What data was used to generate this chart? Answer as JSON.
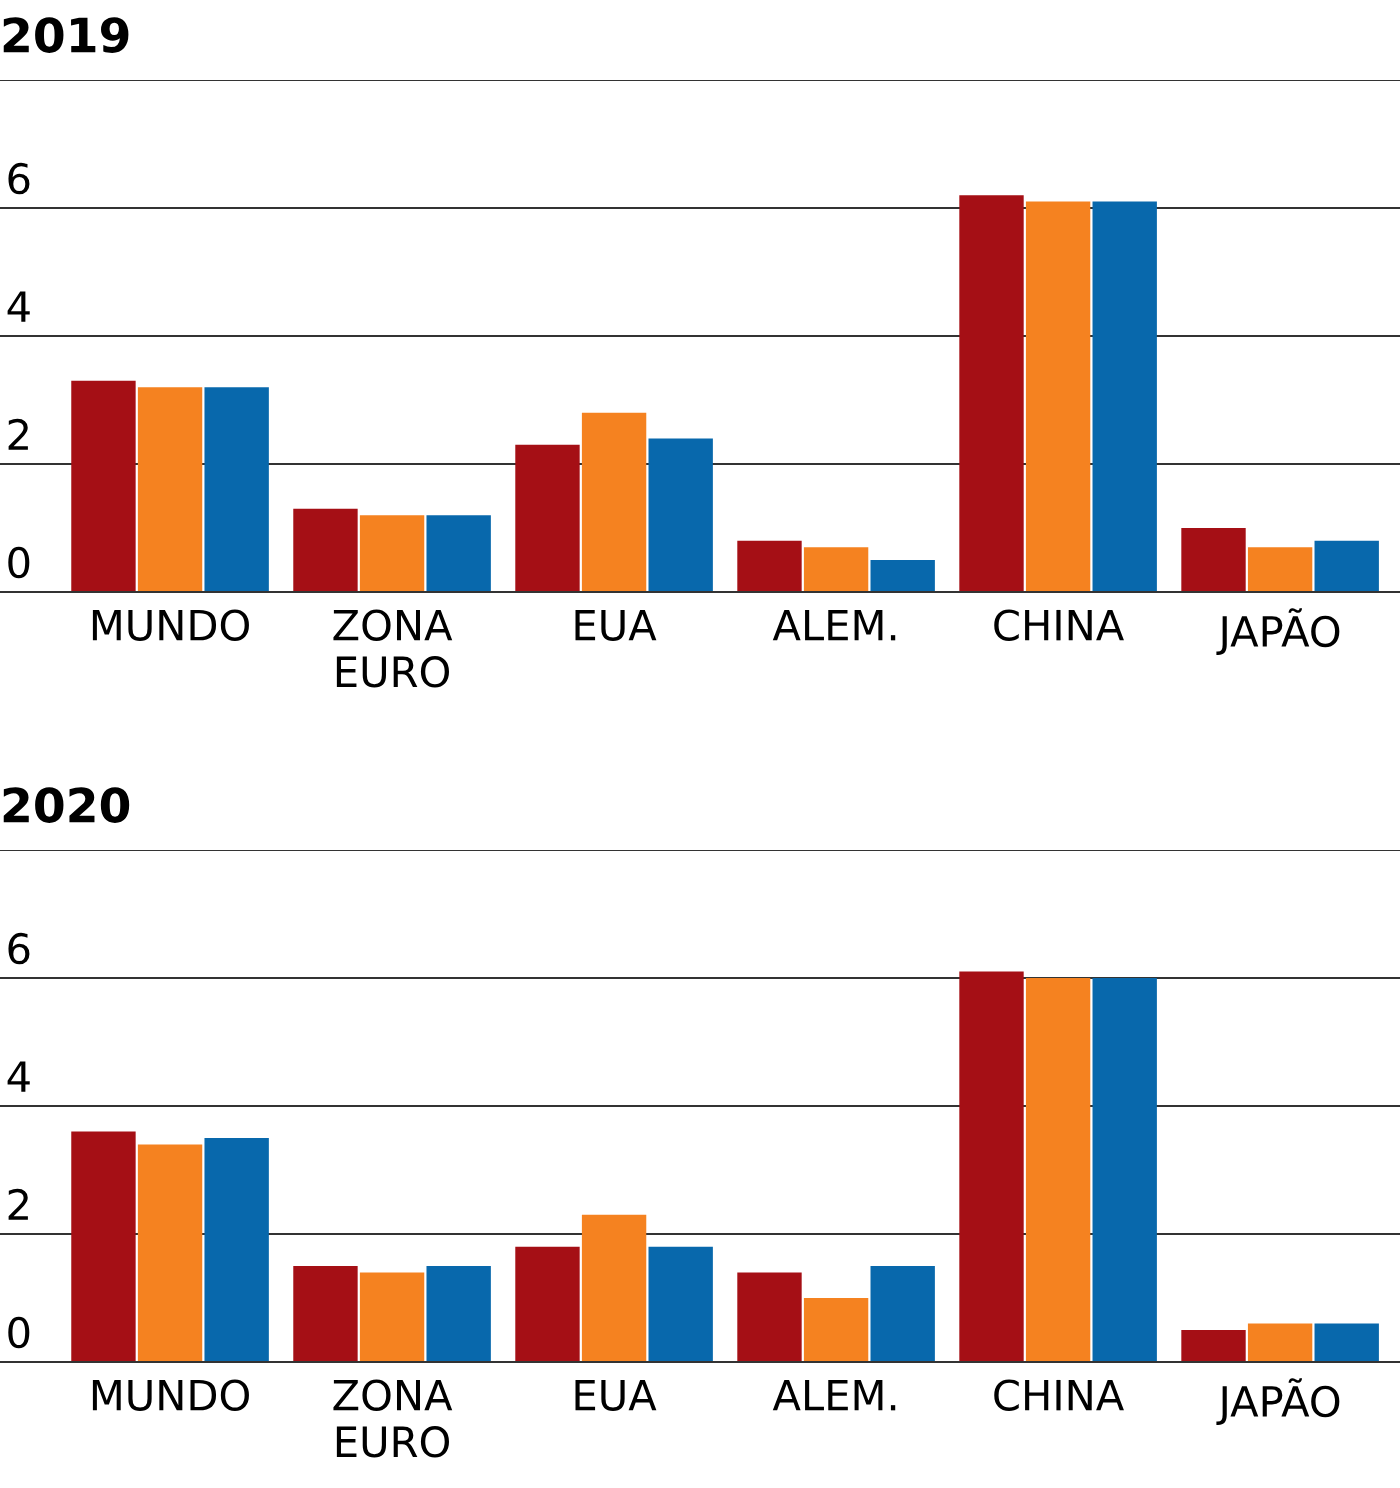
{
  "chart_data": [
    {
      "type": "bar",
      "title": "2019",
      "categories": [
        "MUNDO",
        "ZONA EURO",
        "EUA",
        "ALEM.",
        "CHINA",
        "JAPÃO"
      ],
      "series": [
        {
          "color": "#a50f15",
          "values": [
            3.3,
            1.3,
            2.3,
            0.8,
            6.2,
            1.0
          ]
        },
        {
          "color": "#f58220",
          "values": [
            3.2,
            1.2,
            2.8,
            0.7,
            6.1,
            0.7
          ]
        },
        {
          "color": "#0868ac",
          "values": [
            3.2,
            1.2,
            2.4,
            0.5,
            6.1,
            0.8
          ]
        }
      ],
      "ylim": [
        0,
        8
      ],
      "yticks": [
        0,
        2,
        4,
        6,
        {
          "value": 8,
          "label": null
        }
      ],
      "grid": "y",
      "legend": false
    },
    {
      "type": "bar",
      "title": "2020",
      "categories": [
        "MUNDO",
        "ZONA EURO",
        "EUA",
        "ALEM.",
        "CHINA",
        "JAPÃO"
      ],
      "series": [
        {
          "color": "#a50f15",
          "values": [
            3.6,
            1.5,
            1.8,
            1.4,
            6.1,
            0.5
          ]
        },
        {
          "color": "#f58220",
          "values": [
            3.4,
            1.4,
            2.3,
            1.0,
            6.0,
            0.6
          ]
        },
        {
          "color": "#0868ac",
          "values": [
            3.5,
            1.5,
            1.8,
            1.5,
            6.0,
            0.6
          ]
        }
      ],
      "ylim": [
        0,
        8
      ],
      "yticks": [
        0,
        2,
        4,
        6,
        {
          "value": 8,
          "label": null
        }
      ],
      "grid": "y",
      "legend": false
    }
  ]
}
